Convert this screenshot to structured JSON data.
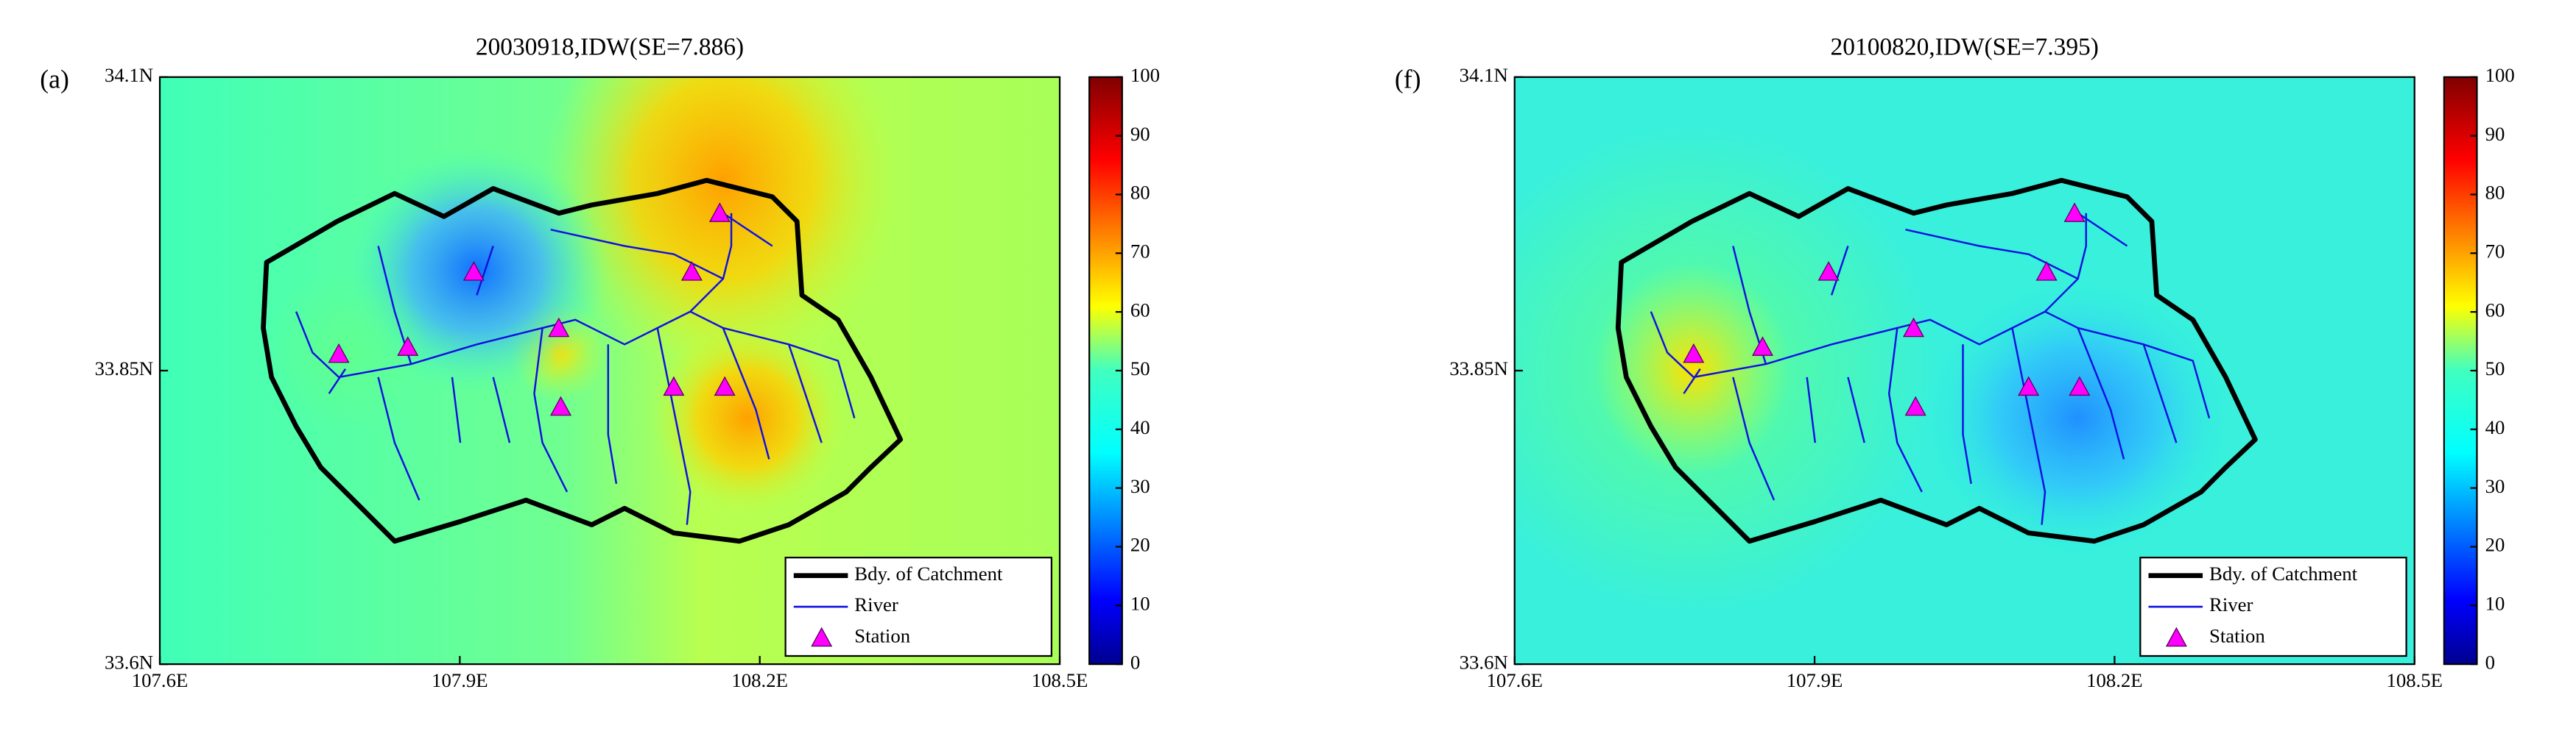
{
  "chart_data": [
    {
      "type": "map",
      "panel_label": "(a)",
      "title": "20030918,IDW(SE=7.886)",
      "xlim": [
        107.6,
        108.5
      ],
      "xticks": [
        {
          "value": 107.6,
          "label": "107.6E"
        },
        {
          "value": 107.9,
          "label": "107.9E"
        },
        {
          "value": 108.2,
          "label": "108.2E"
        },
        {
          "value": 108.5,
          "label": "108.5E"
        }
      ],
      "ylim": [
        33.6,
        34.1
      ],
      "yticks": [
        {
          "value": 33.6,
          "label": "33.6N"
        },
        {
          "value": 33.85,
          "label": "33.85N"
        },
        {
          "value": 34.1,
          "label": "34.1N"
        }
      ],
      "colorbar": {
        "colormap": "jet",
        "lim": [
          0,
          100
        ],
        "ticks": [
          0,
          10,
          20,
          30,
          40,
          50,
          60,
          70,
          80,
          90,
          100
        ]
      },
      "legend": {
        "position": "lower right",
        "entries": [
          "Bdy. of Catchment",
          "River",
          "Station"
        ]
      },
      "stations": {
        "color": "#ff00ff",
        "x": [
          108.16,
          108.132,
          107.914,
          107.999,
          107.848,
          107.779,
          108.114,
          108.165,
          108.001
        ],
        "y": [
          33.984,
          33.934,
          33.934,
          33.886,
          33.87,
          33.864,
          33.836,
          33.836,
          33.819
        ]
      }
    },
    {
      "type": "map",
      "panel_label": "(f)",
      "title": "20100820,IDW(SE=7.395)",
      "xlim": [
        107.6,
        108.5
      ],
      "xticks": [
        {
          "value": 107.6,
          "label": "107.6E"
        },
        {
          "value": 107.9,
          "label": "107.9E"
        },
        {
          "value": 108.2,
          "label": "108.2E"
        },
        {
          "value": 108.5,
          "label": "108.5E"
        }
      ],
      "ylim": [
        33.6,
        34.1
      ],
      "yticks": [
        {
          "value": 33.6,
          "label": "33.6N"
        },
        {
          "value": 33.85,
          "label": "33.85N"
        },
        {
          "value": 34.1,
          "label": "34.1N"
        }
      ],
      "colorbar": {
        "colormap": "jet",
        "lim": [
          0,
          100
        ],
        "ticks": [
          0,
          10,
          20,
          30,
          40,
          50,
          60,
          70,
          80,
          90,
          100
        ]
      },
      "legend": {
        "position": "lower right",
        "entries": [
          "Bdy. of Catchment",
          "River",
          "Station"
        ]
      },
      "stations": {
        "color": "#ff00ff",
        "x": [
          108.16,
          108.132,
          107.914,
          107.999,
          107.848,
          107.779,
          108.114,
          108.165,
          108.001
        ],
        "y": [
          33.984,
          33.934,
          33.934,
          33.886,
          33.87,
          33.864,
          33.836,
          33.836,
          33.819
        ]
      }
    }
  ]
}
